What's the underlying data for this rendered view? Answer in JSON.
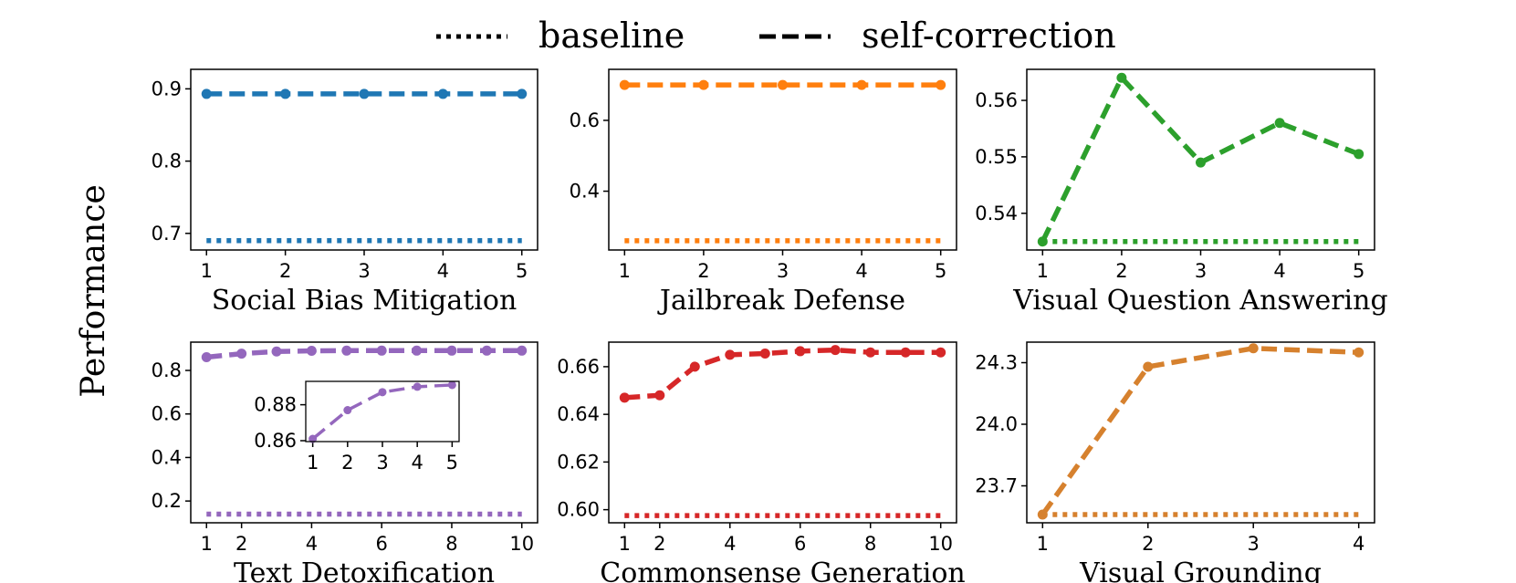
{
  "legend": {
    "baseline_label": "baseline",
    "selfcorr_label": "self-correction"
  },
  "ylabel": "Performance",
  "chart_data": [
    {
      "type": "line",
      "xlabel": "Social Bias Mitigation",
      "color": "#1f77b4",
      "x": [
        1,
        2,
        3,
        4,
        5
      ],
      "xticks": [
        1,
        2,
        3,
        4,
        5
      ],
      "yticks": [
        0.7,
        0.8,
        0.9
      ],
      "ytick_labels": [
        "0.7",
        "0.8",
        "0.9"
      ],
      "ylim": [
        0.677,
        0.927
      ],
      "series": [
        {
          "name": "baseline",
          "style": "dotted",
          "values": [
            0.69,
            0.69,
            0.69,
            0.69,
            0.69
          ]
        },
        {
          "name": "self-correction",
          "style": "dashed",
          "markers": true,
          "values": [
            0.893,
            0.893,
            0.893,
            0.893,
            0.893
          ]
        }
      ]
    },
    {
      "type": "line",
      "xlabel": "Jailbreak Defense",
      "color": "#ff7f0e",
      "x": [
        1,
        2,
        3,
        4,
        5
      ],
      "xticks": [
        1,
        2,
        3,
        4,
        5
      ],
      "yticks": [
        0.4,
        0.6
      ],
      "ytick_labels": [
        "0.4",
        "0.6"
      ],
      "ylim": [
        0.234,
        0.744
      ],
      "series": [
        {
          "name": "baseline",
          "style": "dotted",
          "values": [
            0.26,
            0.26,
            0.26,
            0.26,
            0.26
          ]
        },
        {
          "name": "self-correction",
          "style": "dashed",
          "markers": true,
          "values": [
            0.7,
            0.7,
            0.7,
            0.7,
            0.7
          ]
        }
      ]
    },
    {
      "type": "line",
      "xlabel": "Visual Question Answering",
      "color": "#2ca02c",
      "x": [
        1,
        2,
        3,
        4,
        5
      ],
      "xticks": [
        1,
        2,
        3,
        4,
        5
      ],
      "yticks": [
        0.54,
        0.55,
        0.56
      ],
      "ytick_labels": [
        "0.54",
        "0.55",
        "0.56"
      ],
      "ylim": [
        0.5335,
        0.5655
      ],
      "series": [
        {
          "name": "baseline",
          "style": "dotted",
          "values": [
            0.535,
            0.535,
            0.535,
            0.535,
            0.535
          ]
        },
        {
          "name": "self-correction",
          "style": "dashed",
          "markers": true,
          "values": [
            0.535,
            0.564,
            0.549,
            0.556,
            0.5505
          ]
        }
      ]
    },
    {
      "type": "line",
      "xlabel": "Text Detoxification",
      "color": "#9467bd",
      "x": [
        1,
        2,
        3,
        4,
        5,
        6,
        7,
        8,
        9,
        10
      ],
      "xticks": [
        1,
        2,
        4,
        6,
        8,
        10
      ],
      "yticks": [
        0.2,
        0.4,
        0.6,
        0.8
      ],
      "ytick_labels": [
        "0.2",
        "0.4",
        "0.6",
        "0.8"
      ],
      "ylim": [
        0.1,
        0.93
      ],
      "series": [
        {
          "name": "baseline",
          "style": "dotted",
          "values": [
            0.14,
            0.14,
            0.14,
            0.14,
            0.14,
            0.14,
            0.14,
            0.14,
            0.14,
            0.14
          ]
        },
        {
          "name": "self-correction",
          "style": "dashed",
          "markers": true,
          "values": [
            0.861,
            0.877,
            0.887,
            0.89,
            0.891,
            0.891,
            0.891,
            0.891,
            0.891,
            0.891
          ]
        }
      ],
      "inset": {
        "x": [
          1,
          2,
          3,
          4,
          5
        ],
        "xticks": [
          1,
          2,
          3,
          4,
          5
        ],
        "yticks": [
          0.86,
          0.88
        ],
        "ytick_labels": [
          "0.86",
          "0.88"
        ],
        "ylim": [
          0.8595,
          0.893
        ],
        "values": [
          0.861,
          0.877,
          0.887,
          0.89,
          0.891
        ]
      }
    },
    {
      "type": "line",
      "xlabel": "Commonsense Generation",
      "color": "#d62728",
      "x": [
        1,
        2,
        3,
        4,
        5,
        6,
        7,
        8,
        9,
        10
      ],
      "xticks": [
        1,
        2,
        4,
        6,
        8,
        10
      ],
      "yticks": [
        0.6,
        0.62,
        0.64,
        0.66
      ],
      "ytick_labels": [
        "0.60",
        "0.62",
        "0.64",
        "0.66"
      ],
      "ylim": [
        0.5945,
        0.6703
      ],
      "series": [
        {
          "name": "baseline",
          "style": "dotted",
          "values": [
            0.5975,
            0.5975,
            0.5975,
            0.5975,
            0.5975,
            0.5975,
            0.5975,
            0.5975,
            0.5975,
            0.5975
          ]
        },
        {
          "name": "self-correction",
          "style": "dashed",
          "markers": true,
          "values": [
            0.647,
            0.648,
            0.66,
            0.665,
            0.6655,
            0.6665,
            0.667,
            0.666,
            0.666,
            0.666
          ]
        }
      ]
    },
    {
      "type": "line",
      "xlabel": "Visual Grounding",
      "color": "#d6812e",
      "x": [
        1,
        2,
        3,
        4
      ],
      "xticks": [
        1,
        2,
        3,
        4
      ],
      "yticks": [
        23.7,
        24.0,
        24.3
      ],
      "ytick_labels": [
        "23.7",
        "24.0",
        "24.3"
      ],
      "ylim": [
        23.52,
        24.4
      ],
      "series": [
        {
          "name": "baseline",
          "style": "dotted",
          "values": [
            23.56,
            23.56,
            23.56,
            23.56
          ]
        },
        {
          "name": "self-correction",
          "style": "dashed",
          "markers": true,
          "values": [
            23.56,
            24.28,
            24.37,
            24.35
          ]
        }
      ]
    }
  ]
}
